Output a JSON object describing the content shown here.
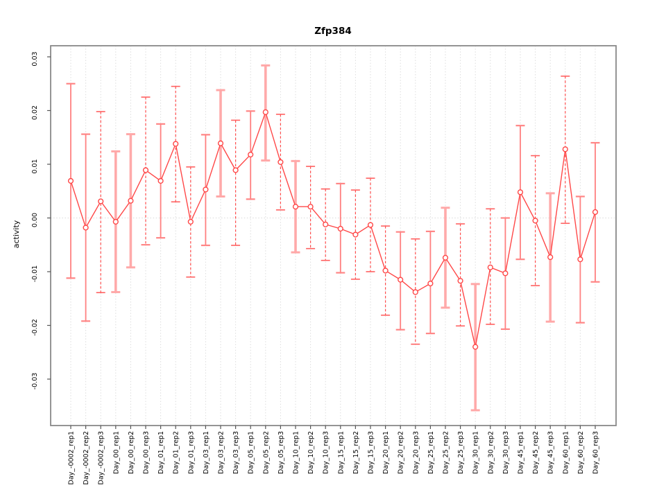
{
  "window": {
    "background": "#ffffff"
  },
  "chart_data": {
    "type": "line",
    "title": "Zfp384",
    "xlabel": "",
    "ylabel": "activity",
    "legend": "none",
    "grid": "vertical dotted gridline per category; dotted horizontal line at y=0",
    "ylim": [
      -0.0385,
      0.0322
    ],
    "yticks": [
      0.03,
      0.02,
      0.01,
      0.0,
      -0.01,
      -0.02,
      -0.03
    ],
    "ytick_labels": [
      "0.03",
      "0.02",
      "0.01",
      "0.00",
      "-0.01",
      "-0.02",
      "-0.03"
    ],
    "categories": [
      "Day_-0002_rep1",
      "Day_-0002_rep2",
      "Day_-0002_rep3",
      "Day_00_rep1",
      "Day_00_rep2",
      "Day_00_rep3",
      "Day_01_rep1",
      "Day_01_rep2",
      "Day_01_rep3",
      "Day_03_rep1",
      "Day_03_rep2",
      "Day_03_rep3",
      "Day_05_rep1",
      "Day_05_rep2",
      "Day_05_rep3",
      "Day_10_rep1",
      "Day_10_rep2",
      "Day_10_rep3",
      "Day_15_rep1",
      "Day_15_rep2",
      "Day_15_rep3",
      "Day_20_rep1",
      "Day_20_rep2",
      "Day_20_rep3",
      "Day_25_rep1",
      "Day_25_rep2",
      "Day_25_rep3",
      "Day_30_rep1",
      "Day_30_rep2",
      "Day_30_rep3",
      "Day_45_rep1",
      "Day_45_rep2",
      "Day_45_rep3",
      "Day_60_rep1",
      "Day_60_rep2",
      "Day_60_rep3"
    ],
    "series": [
      {
        "name": "activity",
        "marker": "open-circle",
        "values": [
          0.0069,
          -0.0018,
          0.0031,
          -0.0007,
          0.0032,
          0.0089,
          0.0069,
          0.0138,
          -0.0007,
          0.0053,
          0.0139,
          0.0089,
          0.0118,
          0.0197,
          0.0104,
          0.0021,
          0.0021,
          -0.0012,
          -0.002,
          -0.0031,
          -0.0013,
          -0.0098,
          -0.0115,
          -0.0138,
          -0.0122,
          -0.0074,
          -0.0117,
          -0.024,
          -0.0092,
          -0.0103,
          0.0048,
          -0.0005,
          -0.0073,
          0.0128,
          -0.0077,
          0.0011
        ],
        "error_low": [
          -0.0112,
          -0.0192,
          -0.0139,
          -0.0138,
          -0.0092,
          -0.005,
          -0.0037,
          0.003,
          -0.011,
          -0.0051,
          0.004,
          -0.0051,
          0.0035,
          0.0107,
          0.0015,
          -0.0064,
          -0.0057,
          -0.0079,
          -0.0102,
          -0.0114,
          -0.01,
          -0.0181,
          -0.0208,
          -0.0235,
          -0.0215,
          -0.0167,
          -0.0201,
          -0.0358,
          -0.0198,
          -0.0207,
          -0.0077,
          -0.0126,
          -0.0193,
          -0.001,
          -0.0195,
          -0.0119
        ],
        "error_high": [
          0.025,
          0.0156,
          0.0198,
          0.0124,
          0.0156,
          0.0225,
          0.0175,
          0.0245,
          0.0095,
          0.0155,
          0.0238,
          0.0182,
          0.0199,
          0.0284,
          0.0193,
          0.0106,
          0.0096,
          0.0054,
          0.0064,
          0.0052,
          0.0074,
          -0.0015,
          -0.0026,
          -0.0039,
          -0.0025,
          0.0019,
          -0.0011,
          -0.0123,
          0.0017,
          0.0,
          0.0172,
          0.0116,
          0.0046,
          0.0264,
          0.004,
          0.014
        ],
        "error_bar_styles": [
          "thin",
          "thin",
          "dashed",
          "thick",
          "thick",
          "dashed",
          "thin",
          "dashed",
          "dashed",
          "thin",
          "thick",
          "dashed",
          "thin",
          "thick",
          "dashed",
          "thick",
          "dashed",
          "dashed",
          "thin",
          "dashed",
          "dashed",
          "dashed",
          "thin",
          "dashed",
          "thin",
          "thick",
          "dashed",
          "thick",
          "dashed",
          "thin",
          "thin",
          "dashed",
          "thick",
          "dashed",
          "thin",
          "thin"
        ]
      }
    ],
    "colors": {
      "series_line": "#ff4747",
      "marker_stroke": "#ff4747",
      "error_thick": "#ffaaaa",
      "error_thin": "#ff8080",
      "error_dashed": "#ff4d4d",
      "cap_thick": "#ffa8a8",
      "cap_thin": "#ff8585",
      "cap_dashed": "#ff6060",
      "gridline": "#dcdcdc",
      "zero_line": "#d9d9d9",
      "frame": "#898989",
      "tick": "#555555",
      "text": "#000000"
    }
  }
}
